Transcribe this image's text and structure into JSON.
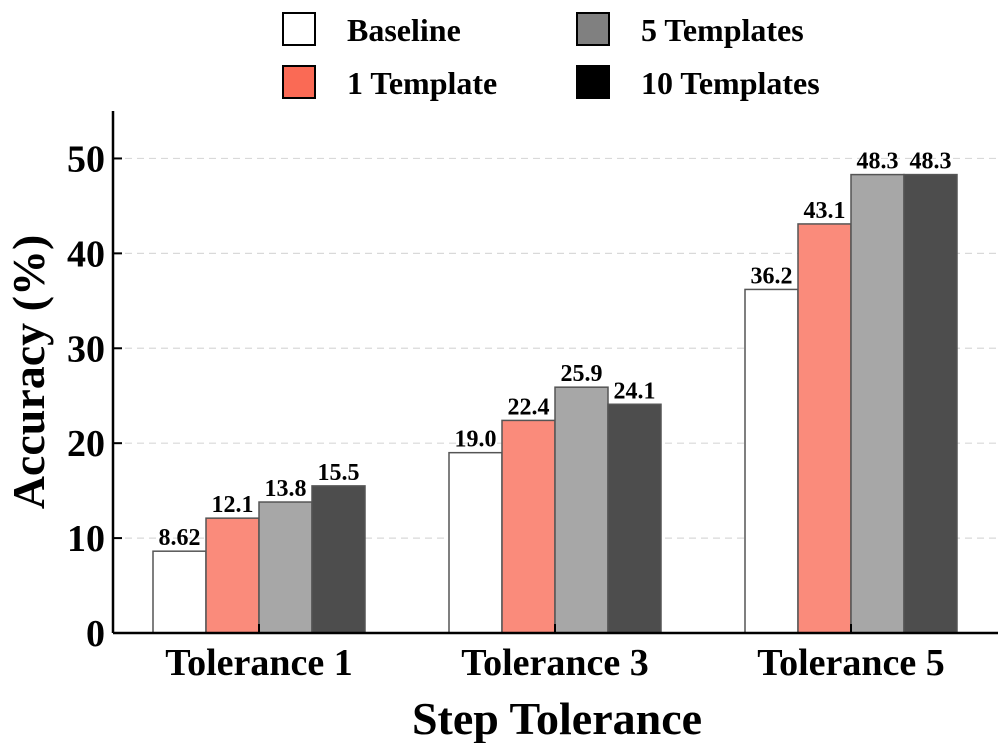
{
  "chart_data": {
    "type": "bar",
    "categories": [
      "Tolerance 1",
      "Tolerance 3",
      "Tolerance 5"
    ],
    "series": [
      {
        "name": "Baseline",
        "values": [
          8.62,
          19.0,
          36.2
        ],
        "labels": [
          "8.62",
          "19.0",
          "36.2"
        ],
        "color": "#ffffff"
      },
      {
        "name": "1 Template",
        "values": [
          12.1,
          22.4,
          43.1
        ],
        "labels": [
          "12.1",
          "22.4",
          "43.1"
        ],
        "color": "#fa8b7b"
      },
      {
        "name": "5 Templates",
        "values": [
          13.8,
          25.9,
          48.3
        ],
        "labels": [
          "13.8",
          "25.9",
          "48.3"
        ],
        "color": "#a7a7a7"
      },
      {
        "name": "10 Templates",
        "values": [
          15.5,
          24.1,
          48.3
        ],
        "labels": [
          "15.5",
          "24.1",
          "48.3"
        ],
        "color": "#4d4d4d"
      }
    ],
    "legend": [
      {
        "label": "Baseline",
        "color": "#ffffff"
      },
      {
        "label": "1 Template",
        "color": "#fa6a55"
      },
      {
        "label": "5 Templates",
        "color": "#808080"
      },
      {
        "label": "10 Templates",
        "color": "#000000"
      }
    ],
    "legend_position": "top",
    "title": "",
    "xlabel": "Step Tolerance",
    "ylabel": "Accuracy (%)",
    "ylim": [
      0,
      55
    ],
    "yticks": [
      0,
      10,
      20,
      30,
      40,
      50
    ],
    "grid": true
  }
}
